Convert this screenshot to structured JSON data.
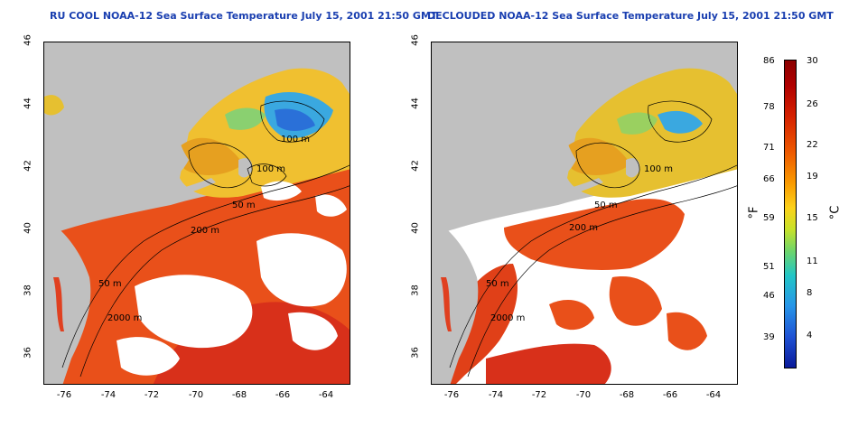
{
  "left_panel": {
    "title": "RU COOL NOAA-12 Sea Surface Temperature July 15, 2001 21:50 GMT"
  },
  "right_panel": {
    "title": "DECLOUDED NOAA-12 Sea Surface Temperature July 15, 2001 21:50 GMT"
  },
  "lat_ticks": [
    "46",
    "44",
    "42",
    "40",
    "38",
    "36"
  ],
  "lon_ticks": [
    "-76",
    "-74",
    "-72",
    "-70",
    "-68",
    "-66",
    "-64"
  ],
  "contour_labels": {
    "left": [
      "100 m",
      "100 m",
      "50 m",
      "200 m",
      "50 m",
      "2000 m"
    ],
    "right": [
      "100 m",
      "50 m",
      "200 m",
      "50 m",
      "2000 m"
    ]
  },
  "colorbar": {
    "fahrenheit_label": "°F",
    "celsius_label": "°C",
    "fahrenheit_ticks": [
      "86",
      "78",
      "71",
      "66",
      "59",
      "51",
      "46",
      "39"
    ],
    "celsius_ticks": [
      "30",
      "26",
      "22",
      "19",
      "15",
      "11",
      "8",
      "4"
    ]
  },
  "colors": {
    "land": "#c0c0c0",
    "title": "#1a3fb0",
    "cloud": "#ffffff"
  }
}
